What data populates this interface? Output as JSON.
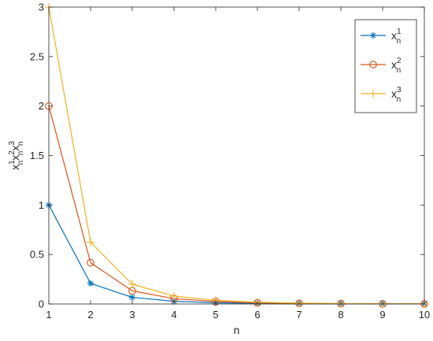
{
  "chart_data": {
    "type": "line",
    "xlabel": "n",
    "ylabel": {
      "base": "x",
      "terms": [
        {
          "sup": "1",
          "sub": "n"
        },
        {
          "sup": "2",
          "sub": "n"
        },
        {
          "sup": "3",
          "sub": "n"
        }
      ]
    },
    "xlim": [
      1,
      10
    ],
    "ylim": [
      0,
      3
    ],
    "xticks": [
      "1",
      "2",
      "3",
      "4",
      "5",
      "6",
      "7",
      "8",
      "9",
      "10"
    ],
    "yticks": [
      "0",
      "0.5",
      "1",
      "1.5",
      "2",
      "2.5",
      "3"
    ],
    "grid": false,
    "legend_position": "top-right",
    "x": [
      1,
      2,
      3,
      4,
      5,
      6,
      7,
      8,
      9,
      10
    ],
    "series": [
      {
        "legend": {
          "base": "x",
          "sup": "1",
          "sub": "n"
        },
        "color": "#0072BD",
        "marker": "asterisk",
        "values": [
          1.0,
          0.208,
          0.067,
          0.027,
          0.012,
          0.006,
          0.003,
          0.0015,
          0.0008,
          0.0004
        ]
      },
      {
        "legend": {
          "base": "x",
          "sup": "2",
          "sub": "n"
        },
        "color": "#D95319",
        "marker": "circle",
        "values": [
          2.0,
          0.417,
          0.133,
          0.054,
          0.025,
          0.012,
          0.006,
          0.003,
          0.0016,
          0.0008
        ]
      },
      {
        "legend": {
          "base": "x",
          "sup": "3",
          "sub": "n"
        },
        "color": "#EDB120",
        "marker": "plus",
        "values": [
          3.0,
          0.625,
          0.2,
          0.08,
          0.037,
          0.018,
          0.009,
          0.0045,
          0.0024,
          0.0012
        ]
      }
    ]
  }
}
